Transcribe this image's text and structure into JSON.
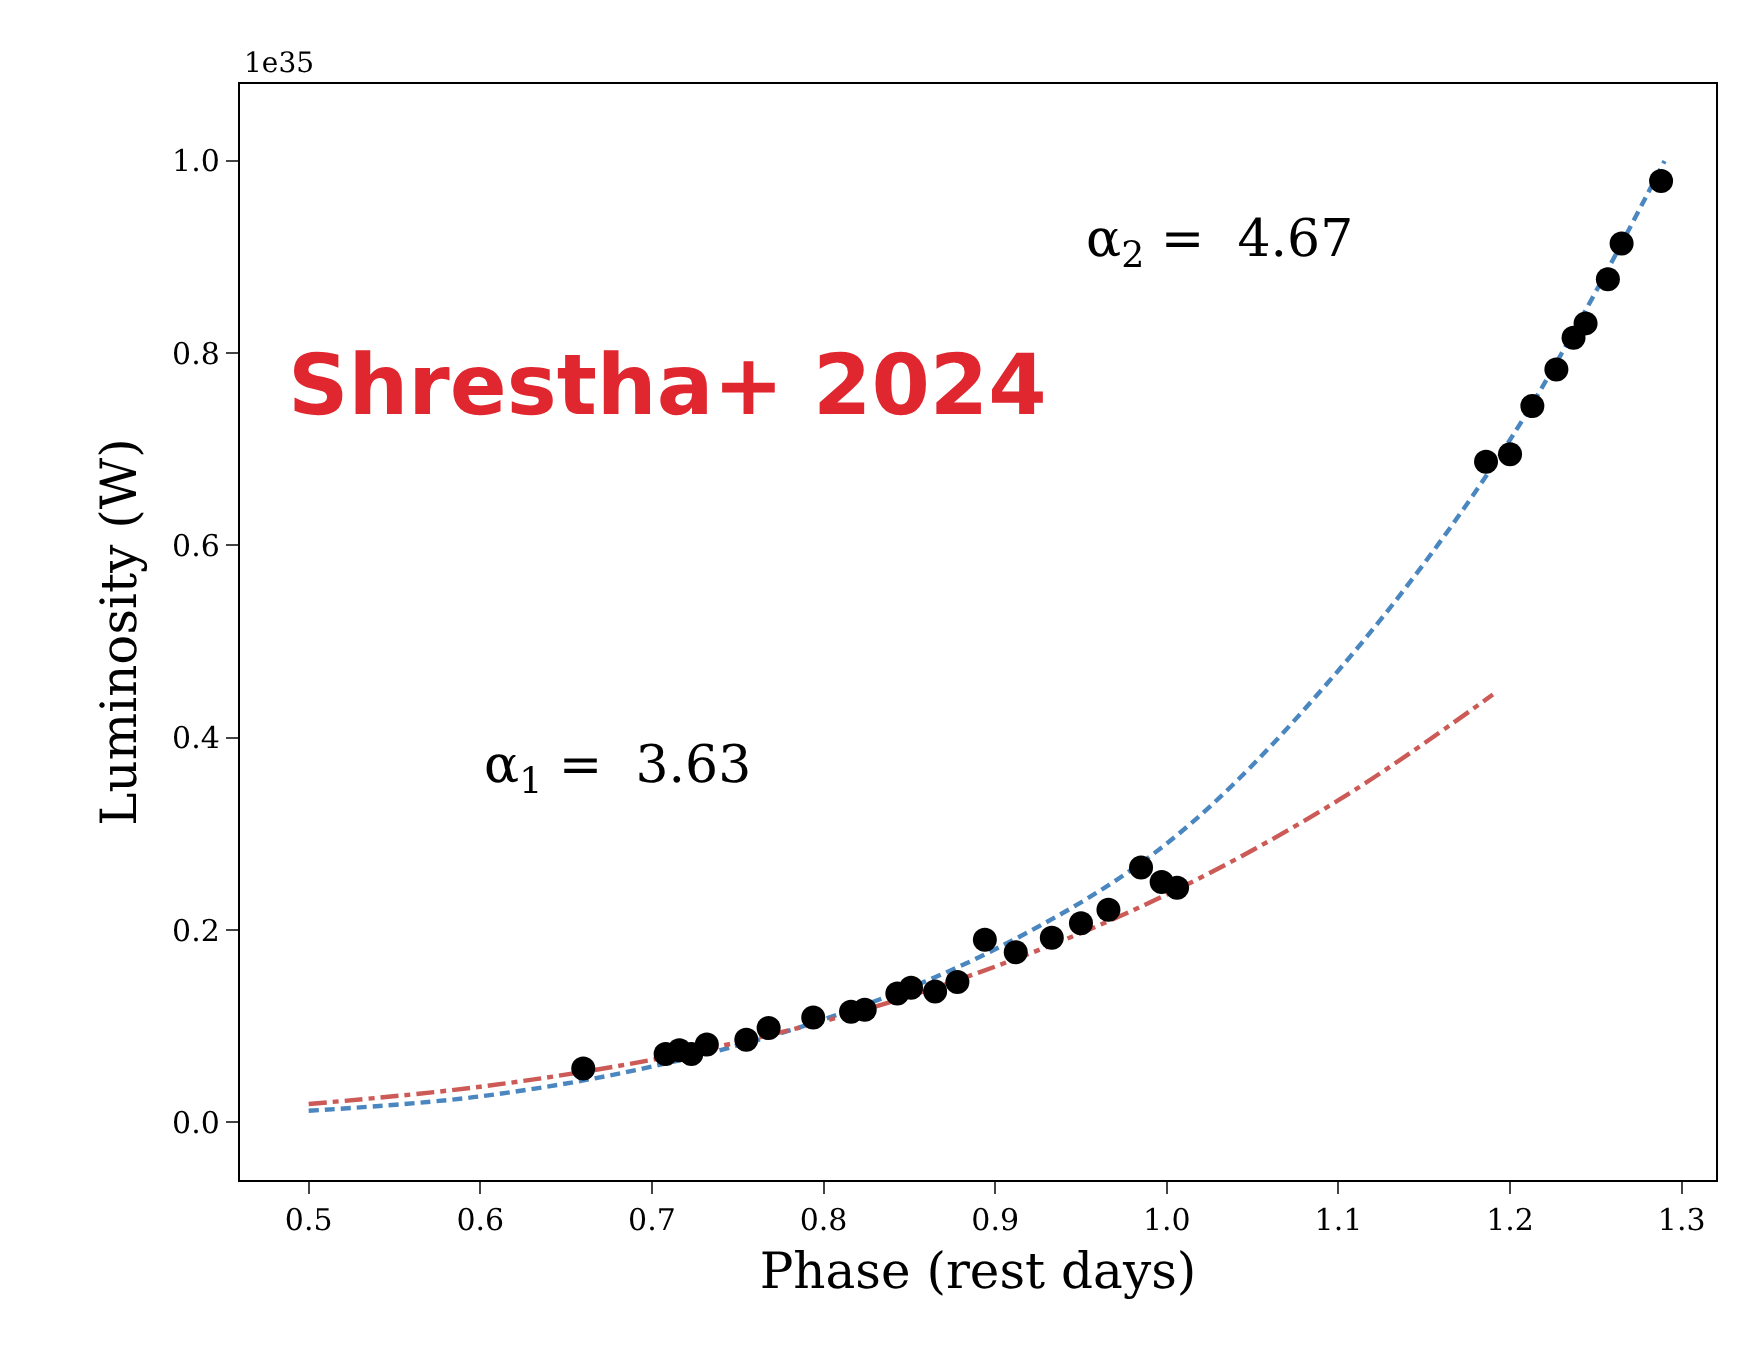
{
  "chart_data": {
    "type": "scatter",
    "xlabel": "Phase (rest days)",
    "ylabel": "Luminosity (W)",
    "xlim": [
      0.46,
      1.32
    ],
    "xticks": [
      0.5,
      0.6,
      0.7,
      0.8,
      0.9,
      {
        "value": 1.0,
        "label": "1.0"
      },
      1.1,
      1.2,
      1.3
    ],
    "ylim": [
      -0.06,
      1.08
    ],
    "yticks": [
      {
        "value": 0,
        "label": "0.0"
      },
      0.2,
      0.4,
      0.6,
      0.8,
      {
        "value": 1,
        "label": "1.0"
      }
    ],
    "series": [
      {
        "type": "line",
        "color": "#4a87c0",
        "line_style": "dashed",
        "marker": "none",
        "x": [
          0.5,
          0.6,
          0.7,
          0.8,
          0.9,
          1.0,
          1.1,
          1.2,
          1.29
        ],
        "values": [
          0.012,
          0.027,
          0.058,
          0.107,
          0.18,
          0.29,
          0.47,
          0.71,
          1.0
        ]
      },
      {
        "type": "line",
        "color": "#cc5a56",
        "line_style": "dashdot",
        "marker": "none",
        "x": [
          0.5,
          0.6,
          0.7,
          0.8,
          0.9,
          1.0,
          1.1,
          1.19
        ],
        "values": [
          0.019,
          0.037,
          0.065,
          0.105,
          0.162,
          0.237,
          0.335,
          0.445
        ]
      },
      {
        "color": "#000000",
        "marker": "circle",
        "x": [
          0.66,
          0.708,
          0.716,
          0.723,
          0.732,
          0.755,
          0.768,
          0.794,
          0.816,
          0.824,
          0.843,
          0.851,
          0.865,
          0.878,
          0.894,
          0.912,
          0.933,
          0.95,
          0.966,
          0.985,
          0.997,
          1.006,
          1.186,
          1.2,
          1.213,
          1.227,
          1.237,
          1.244,
          1.257,
          1.265,
          1.288
        ],
        "values": [
          0.056,
          0.071,
          0.075,
          0.071,
          0.081,
          0.086,
          0.098,
          0.109,
          0.115,
          0.117,
          0.134,
          0.14,
          0.136,
          0.146,
          0.19,
          0.177,
          0.192,
          0.207,
          0.221,
          0.265,
          0.25,
          0.244,
          0.687,
          0.695,
          0.745,
          0.783,
          0.816,
          0.831,
          0.877,
          0.914,
          0.979
        ]
      }
    ],
    "annotations": [
      "α$_{2}$ =  4.67",
      "α$_{1}$ =  3.63",
      "Shrestha+ 2024",
      "1e35"
    ]
  }
}
